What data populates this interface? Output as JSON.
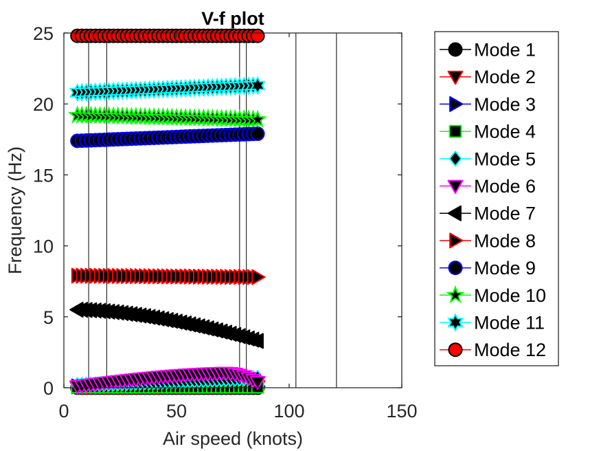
{
  "chart_data": {
    "type": "scatter",
    "title": "V-f plot",
    "xlabel": "Air speed (knots)",
    "ylabel": "Frequency (Hz)",
    "xlim": [
      0,
      150
    ],
    "ylim": [
      0,
      25
    ],
    "xticks": [
      0,
      50,
      100,
      150
    ],
    "yticks": [
      0,
      5,
      10,
      15,
      20,
      25
    ],
    "grid": false,
    "legend_position": "outside-right",
    "vertical_lines_x": [
      11,
      19,
      78,
      81,
      103,
      121
    ],
    "x": [
      6,
      8,
      10,
      12,
      14,
      16,
      18,
      20,
      22,
      24,
      26,
      28,
      30,
      32,
      34,
      36,
      38,
      40,
      42,
      44,
      46,
      48,
      50,
      52,
      54,
      56,
      58,
      60,
      62,
      64,
      66,
      68,
      70,
      72,
      74,
      76,
      78,
      80,
      82,
      84,
      86
    ],
    "series": [
      {
        "name": "Mode 1",
        "marker": "circle",
        "line_color": "#000000",
        "face_color": "#000000",
        "edge_color": "#000000",
        "start": 0.0,
        "end": 0.0,
        "shape": "linear"
      },
      {
        "name": "Mode 2",
        "marker": "triangle-down",
        "line_color": "#ff0000",
        "face_color": "#000000",
        "edge_color": "#ff0000",
        "start": 0.05,
        "end": 0.1,
        "shape": "linear"
      },
      {
        "name": "Mode 3",
        "marker": "triangle-right",
        "line_color": "#0000ff",
        "face_color": "#000000",
        "edge_color": "#0000ff",
        "start": 0.1,
        "end": 0.1,
        "shape": "linear"
      },
      {
        "name": "Mode 4",
        "marker": "square",
        "line_color": "#00ff00",
        "face_color": "#000000",
        "edge_color": "#00ff00",
        "start": 0.05,
        "end": 0.05,
        "shape": "linear"
      },
      {
        "name": "Mode 5",
        "marker": "diamond",
        "line_color": "#00ffff",
        "face_color": "#000000",
        "edge_color": "#00ffff",
        "start": 0.2,
        "end": 0.7,
        "shape": "linear"
      },
      {
        "name": "Mode 6",
        "marker": "triangle-down",
        "line_color": "#ff00ff",
        "face_color": "#000000",
        "edge_color": "#ff00ff",
        "start": 0.1,
        "end": 0.4,
        "peak": 1.1,
        "shape": "arch"
      },
      {
        "name": "Mode 7",
        "marker": "triangle-left",
        "line_color": "#000000",
        "face_color": "#000000",
        "edge_color": "#000000",
        "start": 5.5,
        "end": 3.3,
        "shape": "concave-down"
      },
      {
        "name": "Mode 8",
        "marker": "triangle-right",
        "line_color": "#ff0000",
        "face_color": "#000000",
        "edge_color": "#ff0000",
        "start": 7.9,
        "end": 7.8,
        "shape": "linear"
      },
      {
        "name": "Mode 9",
        "marker": "circle",
        "line_color": "#0000ff",
        "face_color": "#000000",
        "edge_color": "#0000ff",
        "start": 17.4,
        "end": 17.9,
        "shape": "linear"
      },
      {
        "name": "Mode 10",
        "marker": "star5",
        "line_color": "#00ff00",
        "face_color": "#000000",
        "edge_color": "#00ff00",
        "start": 19.2,
        "end": 18.9,
        "shape": "linear"
      },
      {
        "name": "Mode 11",
        "marker": "star6",
        "line_color": "#00ffff",
        "face_color": "#000000",
        "edge_color": "#00ffff",
        "start": 20.8,
        "end": 21.3,
        "shape": "linear"
      },
      {
        "name": "Mode 12",
        "marker": "circle",
        "line_color": "#ff0000",
        "face_color": "#ff0000",
        "edge_color": "#000000",
        "start": 24.8,
        "end": 24.8,
        "shape": "linear"
      }
    ]
  }
}
